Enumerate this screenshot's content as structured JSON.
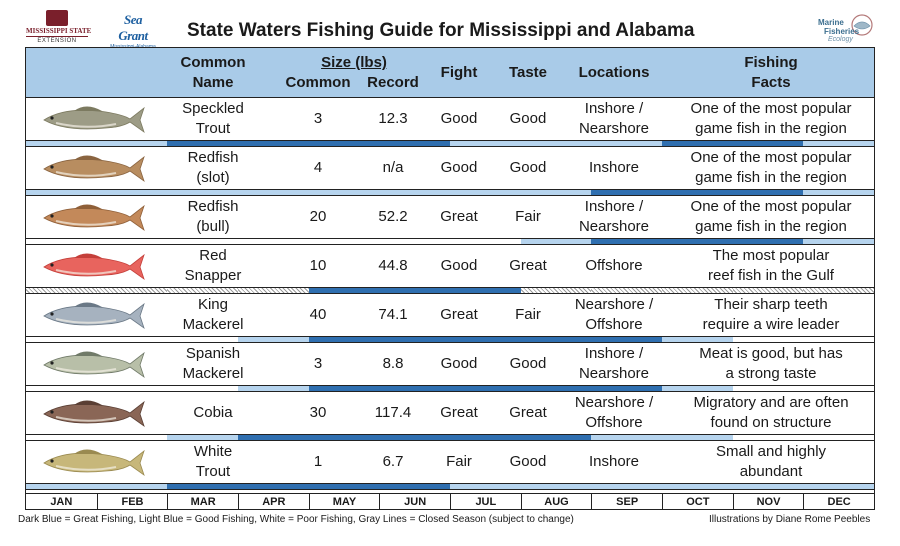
{
  "logos": {
    "msu": {
      "line1": "MISSISSIPPI STATE",
      "line2": "EXTENSION"
    },
    "seagrant": {
      "line1": "Sea Grant",
      "line2": "Mississippi-Alabama"
    },
    "mfe": {
      "line1": "Marine",
      "line2": "Fisheries",
      "line3": "Ecology"
    }
  },
  "title": "State Waters Fishing Guide for Mississippi and Alabama",
  "columns": {
    "name_line1": "Common",
    "name_line2": "Name",
    "size": "Size (lbs)",
    "common": "Common",
    "record": "Record",
    "fight": "Fight",
    "taste": "Taste",
    "locations": "Locations",
    "facts_line1": "Fishing",
    "facts_line2": "Facts"
  },
  "fish": [
    {
      "name1": "Speckled",
      "name2": "Trout",
      "common": "3",
      "record": "12.3",
      "fight": "Good",
      "taste": "Good",
      "loc1": "Inshore /",
      "loc2": "Nearshore",
      "fact1": "One of the most popular",
      "fact2": "game fish in the region",
      "body": "#9d9c86",
      "fin": "#7c7a60",
      "season": [
        "good",
        "good",
        "great",
        "great",
        "great",
        "great",
        "good",
        "good",
        "good",
        "great",
        "great",
        "good"
      ]
    },
    {
      "name1": "Redfish",
      "name2": "(slot)",
      "common": "4",
      "record": "n/a",
      "fight": "Good",
      "taste": "Good",
      "loc1": "Inshore",
      "loc2": "",
      "fact1": "One of the most popular",
      "fact2": "game fish in the region",
      "body": "#b88d60",
      "fin": "#8a6440",
      "season": [
        "good",
        "good",
        "good",
        "good",
        "good",
        "good",
        "good",
        "good",
        "great",
        "great",
        "great",
        "good"
      ]
    },
    {
      "name1": "Redfish",
      "name2": "(bull)",
      "common": "20",
      "record": "52.2",
      "fight": "Great",
      "taste": "Fair",
      "loc1": "Inshore /",
      "loc2": "Nearshore",
      "fact1": "One of the most popular",
      "fact2": "game fish in the region",
      "body": "#c3895a",
      "fin": "#8f5f38",
      "season": [
        "none",
        "none",
        "none",
        "none",
        "none",
        "none",
        "none",
        "good",
        "great",
        "great",
        "great",
        "good"
      ]
    },
    {
      "name1": "Red",
      "name2": "Snapper",
      "common": "10",
      "record": "44.8",
      "fight": "Good",
      "taste": "Great",
      "loc1": "Offshore",
      "loc2": "",
      "fact1": "The most popular",
      "fact2": "reef fish in the Gulf",
      "body": "#e8645e",
      "fin": "#c43f3a",
      "season": [
        "closed",
        "closed",
        "closed",
        "closed",
        "great",
        "great",
        "great",
        "closed",
        "closed",
        "closed",
        "closed",
        "closed"
      ]
    },
    {
      "name1": "King",
      "name2": "Mackerel",
      "common": "40",
      "record": "74.1",
      "fight": "Great",
      "taste": "Fair",
      "loc1": "Nearshore /",
      "loc2": "Offshore",
      "fact1": "Their sharp teeth",
      "fact2": "require a wire leader",
      "body": "#a6b2bf",
      "fin": "#6a7886",
      "season": [
        "none",
        "none",
        "none",
        "good",
        "great",
        "great",
        "great",
        "great",
        "great",
        "good",
        "none",
        "none"
      ]
    },
    {
      "name1": "Spanish",
      "name2": "Mackerel",
      "common": "3",
      "record": "8.8",
      "fight": "Good",
      "taste": "Good",
      "loc1": "Inshore /",
      "loc2": "Nearshore",
      "fact1": "Meat is good, but has",
      "fact2": "a strong taste",
      "body": "#b8bfa8",
      "fin": "#707a68",
      "season": [
        "none",
        "none",
        "none",
        "good",
        "great",
        "great",
        "great",
        "great",
        "great",
        "good",
        "none",
        "none"
      ]
    },
    {
      "name1": "Cobia",
      "name2": "",
      "common": "30",
      "record": "117.4",
      "fight": "Great",
      "taste": "Great",
      "loc1": "Nearshore /",
      "loc2": "Offshore",
      "fact1": "Migratory and are often",
      "fact2": "found on structure",
      "body": "#8a6656",
      "fin": "#5a3f34",
      "season": [
        "none",
        "none",
        "good",
        "great",
        "great",
        "great",
        "great",
        "great",
        "good",
        "good",
        "none",
        "none"
      ]
    },
    {
      "name1": "White",
      "name2": "Trout",
      "common": "1",
      "record": "6.7",
      "fight": "Fair",
      "taste": "Good",
      "loc1": "Inshore",
      "loc2": "",
      "fact1": "Small and highly",
      "fact2": "abundant",
      "body": "#c7b77a",
      "fin": "#9a8a50",
      "season": [
        "good",
        "good",
        "great",
        "great",
        "great",
        "great",
        "good",
        "good",
        "good",
        "good",
        "good",
        "good"
      ]
    }
  ],
  "months": [
    "JAN",
    "FEB",
    "MAR",
    "APR",
    "MAY",
    "JUN",
    "JUL",
    "AUG",
    "SEP",
    "OCT",
    "NOV",
    "DEC"
  ],
  "legend": "Dark Blue = Great Fishing, Light Blue = Good Fishing, White = Poor Fishing, Gray Lines = Closed Season (subject to change)",
  "credit": "Illustrations by Diane Rome Peebles"
}
